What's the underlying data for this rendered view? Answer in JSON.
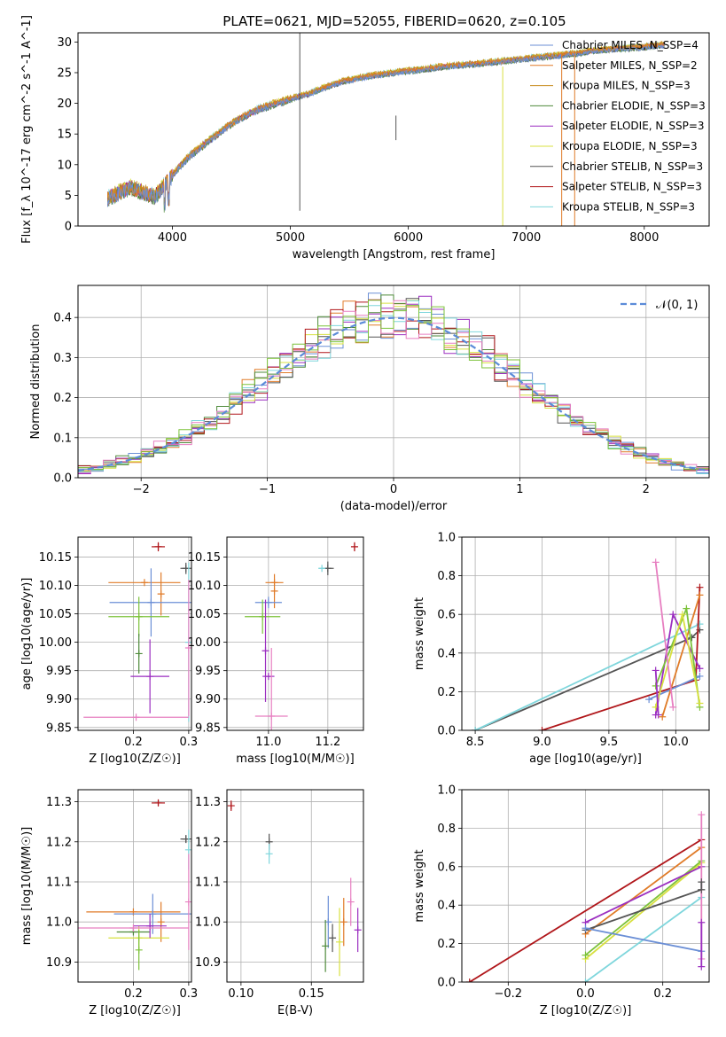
{
  "figure": {
    "title": "PLATE=0621, MJD=52055, FIBERID=0620, z=0.105"
  },
  "colors": {
    "chabrier_miles": "#6b8fd6",
    "salpeter_miles": "#e07b28",
    "kroupa_miles": "#c68a1a",
    "chabrier_elodie": "#4e8a3a",
    "salpeter_elodie": "#9b2fc0",
    "kroupa_elodie": "#d8e040",
    "chabrier_stelib": "#555555",
    "salpeter_stelib": "#b0161a",
    "kroupa_stelib": "#7fd6dc",
    "normal_curve": "#5b8bd8",
    "pink": "#e77fc1",
    "green": "#7cc23a",
    "grid": "#b0b0b0"
  },
  "chart_data": [
    {
      "id": "spectrum",
      "type": "line",
      "title": "PLATE=0621, MJD=52055, FIBERID=0620, z=0.105",
      "xlabel": "wavelength [Angstrom, rest frame]",
      "ylabel": "Flux [f_λ 10^-17 erg cm^-2 s^-1 A^-1]",
      "xlim": [
        3200,
        8550
      ],
      "ylim": [
        0,
        31.5
      ],
      "xticks": [
        "4000",
        "5000",
        "6000",
        "7000",
        "8000"
      ],
      "yticks": [
        "0",
        "5",
        "10",
        "15",
        "20",
        "25",
        "30"
      ],
      "grid": false,
      "legend_position": "top-right",
      "continuum": {
        "x": [
          3450,
          3550,
          3650,
          3750,
          3850,
          3950,
          4050,
          4150,
          4250,
          4350,
          4450,
          4550,
          4650,
          4750,
          4850,
          4950,
          5050,
          5150,
          5250,
          5350,
          5450,
          5550,
          5650,
          5750,
          5850,
          5950,
          6050,
          6150,
          6250,
          6350,
          6450,
          6550,
          6650,
          6750,
          6850,
          6950,
          7050,
          7150,
          7250,
          7350,
          7450,
          7550,
          7650,
          7750,
          7850,
          7950,
          8050,
          8150
        ],
        "y": [
          4.5,
          5.5,
          6.3,
          5.5,
          4.8,
          7.0,
          9.5,
          11.5,
          13.0,
          14.5,
          16.0,
          17.3,
          18.3,
          19.2,
          19.8,
          20.4,
          21.0,
          21.5,
          22.3,
          23.0,
          23.6,
          24.0,
          24.4,
          24.7,
          24.9,
          25.2,
          25.4,
          25.6,
          25.9,
          26.1,
          26.3,
          26.4,
          26.6,
          26.8,
          27.0,
          27.2,
          27.4,
          27.6,
          27.8,
          28.0,
          28.2,
          28.5,
          28.7,
          28.9,
          29.0,
          29.1,
          29.3,
          29.5
        ]
      },
      "series": [
        {
          "name": "Chabrier MILES, N_SSP=4",
          "color_key": "chabrier_miles"
        },
        {
          "name": "Salpeter MILES, N_SSP=2",
          "color_key": "salpeter_miles"
        },
        {
          "name": "Kroupa MILES, N_SSP=3",
          "color_key": "kroupa_miles"
        },
        {
          "name": "Chabrier ELODIE, N_SSP=3",
          "color_key": "chabrier_elodie"
        },
        {
          "name": "Salpeter ELODIE, N_SSP=3",
          "color_key": "salpeter_elodie"
        },
        {
          "name": "Kroupa ELODIE, N_SSP=3",
          "color_key": "kroupa_elodie"
        },
        {
          "name": "Chabrier STELIB, N_SSP=3",
          "color_key": "chabrier_stelib"
        },
        {
          "name": "Salpeter STELIB, N_SSP=3",
          "color_key": "salpeter_stelib"
        },
        {
          "name": "Kroupa STELIB, N_SSP=3",
          "color_key": "kroupa_stelib"
        }
      ]
    },
    {
      "id": "residuals",
      "type": "line",
      "xlabel": "(data-model)/error",
      "ylabel": "Normed distribution",
      "xlim": [
        -2.5,
        2.5
      ],
      "ylim": [
        0,
        0.48
      ],
      "xticks": [
        "−2",
        "−1",
        "0",
        "1",
        "2"
      ],
      "yticks": [
        "0.0",
        "0.1",
        "0.2",
        "0.3",
        "0.4"
      ],
      "grid": true,
      "legend_position": "top-right",
      "reference_curve": {
        "name": "N(0,1)",
        "style": "dashed"
      },
      "bin_width": 0.1
    },
    {
      "id": "age_vs_Z",
      "type": "scatter",
      "xlabel": "Z [log10(Z/Z☉)]",
      "ylabel": "age [log10(age/yr)]",
      "xlim": [
        0.1,
        0.305
      ],
      "ylim": [
        9.845,
        10.185
      ],
      "xticks": [
        "0.2",
        "0.3"
      ],
      "yticks": [
        "9.85",
        "9.90",
        "9.95",
        "10.00",
        "10.05",
        "10.10",
        "10.15"
      ],
      "grid": true,
      "points": [
        {
          "x": 0.245,
          "y": 10.168,
          "xerr": 0.012,
          "yerr": 0.008,
          "color_key": "salpeter_stelib"
        },
        {
          "x": 0.295,
          "y": 10.13,
          "xerr": 0.01,
          "yerr": 0.01,
          "color_key": "chabrier_stelib"
        },
        {
          "x": 0.3,
          "y": 10.0,
          "xerr": 0.0,
          "yerr": 0.14,
          "color_key": "kroupa_stelib"
        },
        {
          "x": 0.25,
          "y": 10.085,
          "xerr": 0.0,
          "yerr": 0.038,
          "color_key": "salpeter_miles"
        },
        {
          "x": 0.22,
          "y": 10.105,
          "xerr": 0.065,
          "yerr": 0.0,
          "color_key": "salpeter_miles"
        },
        {
          "x": 0.232,
          "y": 10.07,
          "xerr": 0.075,
          "yerr": 0.06,
          "color_key": "chabrier_miles"
        },
        {
          "x": 0.21,
          "y": 10.045,
          "xerr": 0.055,
          "yerr": 0.035,
          "color_key": "green"
        },
        {
          "x": 0.23,
          "y": 9.94,
          "xerr": 0.035,
          "yerr": 0.065,
          "color_key": "salpeter_elodie"
        },
        {
          "x": 0.21,
          "y": 9.98,
          "xerr": 0.0,
          "yerr": 0.035,
          "color_key": "chabrier_elodie"
        },
        {
          "x": 0.205,
          "y": 9.868,
          "xerr": 0.095,
          "yerr": 0.0,
          "color_key": "pink"
        },
        {
          "x": 0.3,
          "y": 9.99,
          "xerr": 0.0,
          "yerr": 0.12,
          "color_key": "pink"
        }
      ]
    },
    {
      "id": "age_vs_mass",
      "type": "scatter",
      "xlabel": "mass [log10(M/M☉)]",
      "ylabel": "",
      "xlim": [
        10.86,
        11.32
      ],
      "ylim": [
        9.845,
        10.185
      ],
      "xticks": [
        "11.0",
        "11.2"
      ],
      "yticks": [
        "9.85",
        "9.90",
        "9.95",
        "10.00",
        "10.05",
        "10.10",
        "10.15"
      ],
      "grid": true,
      "points": [
        {
          "x": 11.29,
          "y": 10.168,
          "xerr": 0.0,
          "yerr": 0.008,
          "color_key": "salpeter_stelib"
        },
        {
          "x": 11.2,
          "y": 10.13,
          "xerr": 0.02,
          "yerr": 0.012,
          "color_key": "chabrier_stelib"
        },
        {
          "x": 11.18,
          "y": 10.13,
          "xerr": 0.01,
          "yerr": 0.0,
          "color_key": "kroupa_stelib"
        },
        {
          "x": 11.02,
          "y": 10.09,
          "xerr": 0.0,
          "yerr": 0.03,
          "color_key": "salpeter_miles"
        },
        {
          "x": 11.02,
          "y": 10.105,
          "xerr": 0.03,
          "yerr": 0.0,
          "color_key": "salpeter_miles"
        },
        {
          "x": 11.0,
          "y": 10.07,
          "xerr": 0.045,
          "yerr": 0.01,
          "color_key": "chabrier_miles"
        },
        {
          "x": 10.98,
          "y": 10.045,
          "xerr": 0.06,
          "yerr": 0.03,
          "color_key": "green"
        },
        {
          "x": 10.99,
          "y": 9.985,
          "xerr": 0.0,
          "yerr": 0.09,
          "color_key": "salpeter_elodie"
        },
        {
          "x": 11.0,
          "y": 9.94,
          "xerr": 0.02,
          "yerr": 0.0,
          "color_key": "salpeter_elodie"
        },
        {
          "x": 11.01,
          "y": 9.87,
          "xerr": 0.055,
          "yerr": 0.12,
          "color_key": "pink"
        }
      ]
    },
    {
      "id": "massweight_vs_age",
      "type": "line",
      "xlabel": "age [log10(age/yr)]",
      "ylabel": "mass weight",
      "xlim": [
        8.4,
        10.25
      ],
      "ylim": [
        0,
        1.0
      ],
      "xticks": [
        "8.5",
        "9.0",
        "9.5",
        "10.0"
      ],
      "yticks": [
        "0.0",
        "0.2",
        "0.4",
        "0.6",
        "0.8",
        "1.0"
      ],
      "grid": true,
      "lines": [
        {
          "color_key": "chabrier_stelib",
          "x": [
            8.5,
            10.12,
            10.18
          ],
          "y": [
            0.0,
            0.48,
            0.52
          ]
        },
        {
          "color_key": "kroupa_stelib",
          "x": [
            8.5,
            10.18
          ],
          "y": [
            0.0,
            0.55
          ]
        },
        {
          "color_key": "salpeter_stelib",
          "x": [
            9.0,
            10.15,
            10.18
          ],
          "y": [
            0.0,
            0.26,
            0.74
          ]
        },
        {
          "color_key": "chabrier_miles",
          "x": [
            9.8,
            10.18
          ],
          "y": [
            0.16,
            0.28
          ]
        },
        {
          "color_key": "salpeter_miles",
          "x": [
            9.9,
            10.18
          ],
          "y": [
            0.07,
            0.7
          ]
        },
        {
          "color_key": "salpeter_elodie",
          "x": [
            9.85,
            9.98,
            10.18
          ],
          "y": [
            0.08,
            0.6,
            0.32
          ]
        },
        {
          "color_key": "green",
          "x": [
            9.85,
            10.08,
            10.18
          ],
          "y": [
            0.23,
            0.63,
            0.12
          ]
        },
        {
          "color_key": "kroupa_elodie",
          "x": [
            9.85,
            10.05,
            10.18
          ],
          "y": [
            0.12,
            0.6,
            0.14
          ]
        },
        {
          "color_key": "pink",
          "x": [
            9.85,
            9.98
          ],
          "y": [
            0.87,
            0.12
          ]
        },
        {
          "color_key": "salpeter_elodie",
          "x": [
            9.85,
            9.87
          ],
          "y": [
            0.31,
            0.08
          ]
        }
      ]
    },
    {
      "id": "mass_vs_Z",
      "type": "scatter",
      "xlabel": "Z [log10(Z/Z☉)]",
      "ylabel": "mass [log10(M/M☉)]",
      "xlim": [
        0.1,
        0.305
      ],
      "ylim": [
        10.85,
        11.33
      ],
      "xticks": [
        "0.2",
        "0.3"
      ],
      "yticks": [
        "10.9",
        "11.0",
        "11.1",
        "11.2",
        "11.3"
      ],
      "grid": true,
      "points": [
        {
          "x": 0.245,
          "y": 11.297,
          "xerr": 0.012,
          "yerr": 0.006,
          "color_key": "salpeter_stelib"
        },
        {
          "x": 0.295,
          "y": 11.207,
          "xerr": 0.01,
          "yerr": 0.01,
          "color_key": "chabrier_stelib"
        },
        {
          "x": 0.3,
          "y": 11.18,
          "xerr": 0.0,
          "yerr": 0.05,
          "color_key": "kroupa_stelib"
        },
        {
          "x": 0.25,
          "y": 11.0,
          "xerr": 0.0,
          "yerr": 0.05,
          "color_key": "salpeter_miles"
        },
        {
          "x": 0.2,
          "y": 11.025,
          "xerr": 0.085,
          "yerr": 0.0,
          "color_key": "salpeter_miles"
        },
        {
          "x": 0.235,
          "y": 11.02,
          "xerr": 0.07,
          "yerr": 0.05,
          "color_key": "chabrier_miles"
        },
        {
          "x": 0.21,
          "y": 10.96,
          "xerr": 0.055,
          "yerr": 0.03,
          "color_key": "kroupa_elodie"
        },
        {
          "x": 0.2,
          "y": 10.975,
          "xerr": 0.03,
          "yerr": 0.0,
          "color_key": "chabrier_elodie"
        },
        {
          "x": 0.23,
          "y": 10.99,
          "xerr": 0.03,
          "yerr": 0.03,
          "color_key": "salpeter_elodie"
        },
        {
          "x": 0.21,
          "y": 10.93,
          "xerr": 0.0,
          "yerr": 0.05,
          "color_key": "green"
        },
        {
          "x": 0.2,
          "y": 10.985,
          "xerr": 0.1,
          "yerr": 0.0,
          "color_key": "pink"
        },
        {
          "x": 0.3,
          "y": 11.05,
          "xerr": 0.0,
          "yerr": 0.12,
          "color_key": "pink"
        }
      ]
    },
    {
      "id": "mass_vs_EBV",
      "type": "scatter",
      "xlabel": "E(B-V)",
      "ylabel": "",
      "xlim": [
        0.09,
        0.187
      ],
      "ylim": [
        10.85,
        11.33
      ],
      "xticks": [
        "0.10",
        "0.15"
      ],
      "yticks": [
        "10.9",
        "11.0",
        "11.1",
        "11.2",
        "11.3"
      ],
      "grid": true,
      "points": [
        {
          "x": 0.093,
          "y": 11.29,
          "xerr": 0.0,
          "yerr": 0.013,
          "color_key": "salpeter_stelib"
        },
        {
          "x": 0.12,
          "y": 11.2,
          "xerr": 0.0,
          "yerr": 0.02,
          "color_key": "chabrier_stelib"
        },
        {
          "x": 0.12,
          "y": 11.17,
          "xerr": 0.0,
          "yerr": 0.025,
          "color_key": "kroupa_stelib"
        },
        {
          "x": 0.162,
          "y": 11.0,
          "xerr": 0.0,
          "yerr": 0.065,
          "color_key": "chabrier_miles"
        },
        {
          "x": 0.16,
          "y": 10.94,
          "xerr": 0.0,
          "yerr": 0.065,
          "color_key": "chabrier_elodie"
        },
        {
          "x": 0.17,
          "y": 10.95,
          "xerr": 0.0,
          "yerr": 0.085,
          "color_key": "kroupa_elodie"
        },
        {
          "x": 0.173,
          "y": 11.0,
          "xerr": 0.0,
          "yerr": 0.06,
          "color_key": "salpeter_miles"
        },
        {
          "x": 0.178,
          "y": 11.05,
          "xerr": 0.0,
          "yerr": 0.06,
          "color_key": "pink"
        },
        {
          "x": 0.183,
          "y": 10.98,
          "xerr": 0.0,
          "yerr": 0.055,
          "color_key": "salpeter_elodie"
        },
        {
          "x": 0.165,
          "y": 10.96,
          "xerr": 0.0,
          "yerr": 0.035,
          "color_key": "chabrier_stelib"
        }
      ]
    },
    {
      "id": "massweight_vs_Z",
      "type": "line",
      "xlabel": "Z [log10(Z/Z☉)]",
      "ylabel": "mass weight",
      "xlim": [
        -0.32,
        0.32
      ],
      "ylim": [
        0,
        1.0
      ],
      "xticks": [
        "−0.2",
        "0.0",
        "0.2"
      ],
      "yticks": [
        "0.0",
        "0.2",
        "0.4",
        "0.6",
        "0.8",
        "1.0"
      ],
      "grid": true,
      "lines": [
        {
          "color_key": "salpeter_stelib",
          "x": [
            -0.3,
            0.3
          ],
          "y": [
            0.0,
            0.74
          ]
        },
        {
          "color_key": "salpeter_miles",
          "x": [
            0.0,
            0.3
          ],
          "y": [
            0.25,
            0.7
          ]
        },
        {
          "color_key": "kroupa_elodie",
          "x": [
            0.0,
            0.3
          ],
          "y": [
            0.12,
            0.62
          ]
        },
        {
          "color_key": "green",
          "x": [
            0.0,
            0.3
          ],
          "y": [
            0.14,
            0.63
          ]
        },
        {
          "color_key": "salpeter_elodie",
          "x": [
            0.0,
            0.3
          ],
          "y": [
            0.31,
            0.6
          ]
        },
        {
          "color_key": "chabrier_stelib",
          "x": [
            0.0,
            0.3
          ],
          "y": [
            0.27,
            0.48
          ]
        },
        {
          "color_key": "kroupa_stelib",
          "x": [
            0.0,
            0.3
          ],
          "y": [
            0.0,
            0.44
          ]
        },
        {
          "color_key": "chabrier_miles",
          "x": [
            0.0,
            0.3
          ],
          "y": [
            0.28,
            0.16
          ]
        },
        {
          "color_key": "pink",
          "x": [
            0.3,
            0.3
          ],
          "y": [
            0.12,
            0.87
          ]
        },
        {
          "color_key": "salpeter_elodie",
          "x": [
            0.3,
            0.3
          ],
          "y": [
            0.08,
            0.31
          ]
        },
        {
          "color_key": "chabrier_stelib",
          "x": [
            0.3,
            0.3
          ],
          "y": [
            0.48,
            0.52
          ]
        }
      ]
    }
  ]
}
